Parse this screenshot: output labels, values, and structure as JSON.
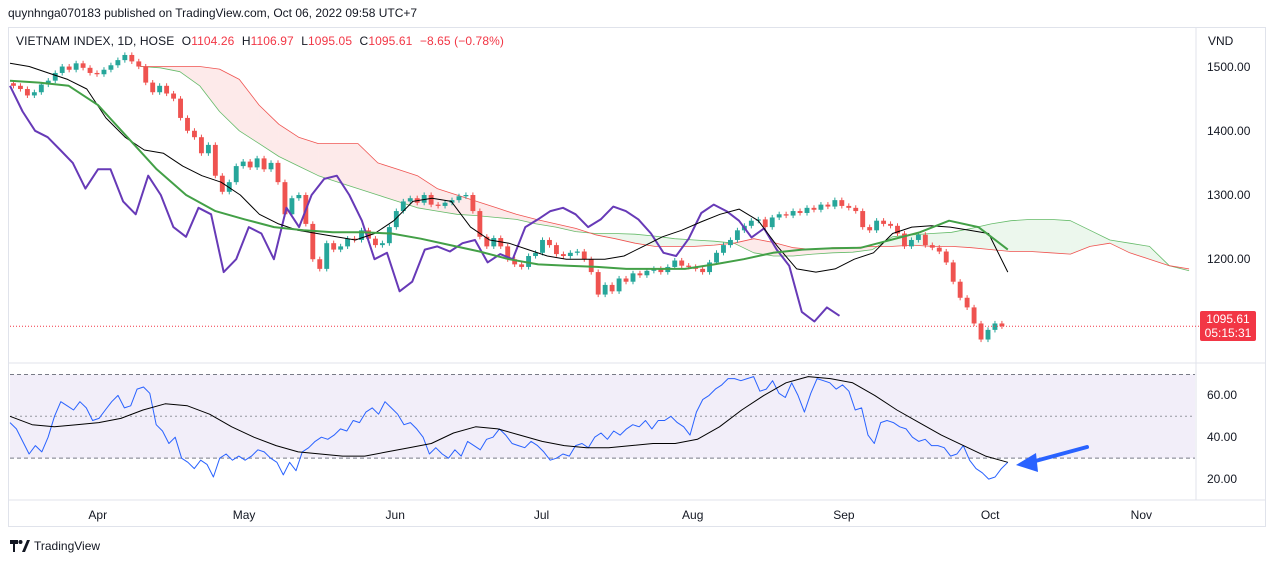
{
  "publisher_line": "quynhnga070183 published on TradingView.com, Oct 06, 2022 09:58 UTC+7",
  "brand": "TradingView",
  "legend": {
    "symbol": "VIETNAM INDEX, 1D, HOSE",
    "o_label": "O",
    "o_value": "1104.26",
    "h_label": "H",
    "h_value": "1106.97",
    "l_label": "L",
    "l_value": "1095.05",
    "c_label": "C",
    "c_value": "1095.61",
    "change": "−8.65 (−0.78%)"
  },
  "currency": "VND",
  "last_price": "1095.61",
  "countdown": "05:15:31",
  "colors": {
    "up": "#26a69a",
    "down": "#ef5350",
    "lagging": "#673ab7",
    "conversion": "#000000",
    "base_kijun": "#43a047",
    "span_a": "#66bb6a",
    "span_b": "#ef5350",
    "rsi": "#2962ff",
    "rsi_ma": "#000000",
    "arrow": "#2962ff"
  },
  "chart_data": [
    {
      "type": "candlestick",
      "title": "VIETNAM INDEX, 1D, HOSE",
      "ylabel": "VND",
      "ylim": [
        1040,
        1560
      ],
      "yticks": [
        "1500.00",
        "1400.00",
        "1300.00",
        "1200.00"
      ],
      "yticks_values": [
        1500,
        1400,
        1300,
        1200
      ],
      "xticks": [
        "Apr",
        "May",
        "Jun",
        "Jul",
        "Aug",
        "Sep",
        "Oct",
        "Nov"
      ],
      "xrange": [
        "2022-03-14",
        "2022-11-12"
      ],
      "candles_close": [
        1470,
        1465,
        1455,
        1460,
        1472,
        1478,
        1490,
        1500,
        1495,
        1505,
        1498,
        1490,
        1488,
        1495,
        1502,
        1510,
        1518,
        1508,
        1500,
        1475,
        1460,
        1470,
        1458,
        1450,
        1420,
        1400,
        1390,
        1365,
        1378,
        1330,
        1305,
        1320,
        1345,
        1352,
        1343,
        1357,
        1340,
        1350,
        1320,
        1270,
        1295,
        1300,
        1255,
        1200,
        1185,
        1225,
        1215,
        1220,
        1232,
        1230,
        1245,
        1232,
        1222,
        1225,
        1250,
        1275,
        1290,
        1295,
        1288,
        1300,
        1285,
        1283,
        1288,
        1292,
        1298,
        1300,
        1275,
        1235,
        1220,
        1233,
        1220,
        1200,
        1192,
        1188,
        1205,
        1210,
        1230,
        1222,
        1208,
        1205,
        1210,
        1212,
        1200,
        1180,
        1145,
        1160,
        1150,
        1170,
        1165,
        1178,
        1175,
        1182,
        1185,
        1180,
        1188,
        1198,
        1190,
        1188,
        1185,
        1180,
        1195,
        1210,
        1222,
        1230,
        1245,
        1252,
        1260,
        1262,
        1250,
        1265,
        1270,
        1268,
        1275,
        1272,
        1280,
        1277,
        1285,
        1282,
        1292,
        1283,
        1280,
        1275,
        1250,
        1245,
        1260,
        1255,
        1252,
        1240,
        1220,
        1230,
        1238,
        1222,
        1218,
        1212,
        1195,
        1165,
        1140,
        1125,
        1100,
        1075,
        1090,
        1100,
        1095.61
      ],
      "last_close": 1095.61,
      "series": [
        {
          "name": "Ichimoku conversion line",
          "values": [
            1505,
            1500,
            1490,
            1480,
            1465,
            1420,
            1390,
            1370,
            1365,
            1345,
            1330,
            1320,
            1300,
            1270,
            1255,
            1245,
            1240,
            1235,
            1230,
            1240,
            1260,
            1290,
            1295,
            1290,
            1250,
            1230,
            1225,
            1215,
            1205,
            1200,
            1200,
            1200,
            1205,
            1220,
            1235,
            1245,
            1258,
            1270,
            1278,
            1260,
            1220,
            1185,
            1180,
            1185,
            1200,
            1210,
            1240,
            1250,
            1252,
            1250,
            1245,
            1240,
            1180
          ]
        },
        {
          "name": "Ichimoku base line",
          "values": [
            1478,
            1475,
            1470,
            1440,
            1390,
            1340,
            1300,
            1275,
            1262,
            1250,
            1245,
            1242,
            1242,
            1240,
            1232,
            1222,
            1212,
            1200,
            1192,
            1190,
            1188,
            1185,
            1185,
            1185,
            1192,
            1200,
            1210,
            1215,
            1217,
            1218,
            1230,
            1242,
            1260,
            1250,
            1215
          ]
        },
        {
          "name": "Ichimoku lagging span",
          "values": [
            1470,
            1430,
            1400,
            1390,
            1370,
            1350,
            1310,
            1340,
            1340,
            1290,
            1270,
            1330,
            1300,
            1250,
            1235,
            1280,
            1270,
            1180,
            1200,
            1250,
            1240,
            1200,
            1280,
            1250,
            1300,
            1325,
            1330,
            1300,
            1260,
            1200,
            1210,
            1150,
            1165,
            1215,
            1220,
            1212,
            1225,
            1230,
            1195,
            1208,
            1200,
            1250,
            1262,
            1275,
            1280,
            1270,
            1250,
            1262,
            1282,
            1275,
            1262,
            1240,
            1210,
            1205,
            1232,
            1272,
            1285,
            1275,
            1260,
            1234,
            1248,
            1215,
            1190,
            1118,
            1103,
            1125,
            1112
          ]
        },
        {
          "name": "Ichimoku leading span A",
          "values": [
            1500,
            1498,
            1492,
            1470,
            1430,
            1400,
            1380,
            1360,
            1345,
            1330,
            1320,
            1310,
            1300,
            1290,
            1280,
            1275,
            1270,
            1268,
            1265,
            1262,
            1255,
            1250,
            1243,
            1240,
            1240,
            1239,
            1236,
            1232,
            1230,
            1228,
            1225,
            1210,
            1205,
            1205,
            1208,
            1210,
            1211,
            1215,
            1235,
            1238,
            1240,
            1242,
            1248,
            1255,
            1260,
            1262,
            1262,
            1260,
            1245,
            1230,
            1225,
            1220,
            1190,
            1182
          ]
        },
        {
          "name": "Ichimoku leading span B",
          "values": [
            1500,
            1500,
            1500,
            1500,
            1496,
            1480,
            1440,
            1410,
            1390,
            1380,
            1380,
            1380,
            1350,
            1340,
            1330,
            1310,
            1300,
            1290,
            1280,
            1270,
            1262,
            1255,
            1248,
            1238,
            1232,
            1225,
            1220,
            1220,
            1220,
            1222,
            1225,
            1232,
            1226,
            1218,
            1215,
            1218,
            1218,
            1220,
            1220,
            1222,
            1220,
            1220,
            1218,
            1215,
            1212,
            1212,
            1210,
            1208,
            1220,
            1225,
            1210,
            1200,
            1190,
            1185
          ]
        }
      ]
    },
    {
      "type": "line",
      "title": "RSI",
      "ylim": [
        10,
        75
      ],
      "yticks": [
        "60.00",
        "40.00",
        "20.00"
      ],
      "yticks_values": [
        60,
        40,
        20
      ],
      "band": [
        30,
        70
      ],
      "midline": 50,
      "series": [
        {
          "name": "RSI",
          "values": [
            47,
            44,
            38,
            32,
            36,
            33,
            40,
            50,
            57,
            55,
            53,
            57,
            54,
            48,
            49,
            53,
            57,
            60,
            54,
            55,
            63,
            64,
            61,
            46,
            43,
            37,
            40,
            30,
            28,
            25,
            29,
            27,
            21,
            30,
            32,
            29,
            31,
            29,
            31,
            34,
            33,
            30,
            28,
            22,
            28,
            24,
            33,
            35,
            38,
            40,
            39,
            41,
            44,
            43,
            48,
            47,
            52,
            54,
            51,
            57,
            54,
            51,
            46,
            47,
            44,
            40,
            32,
            35,
            32,
            30,
            34,
            31,
            38,
            36,
            34,
            39,
            40,
            44,
            41,
            37,
            36,
            35,
            38,
            36,
            33,
            29,
            30,
            32,
            31,
            36,
            37,
            35,
            40,
            42,
            39,
            43,
            41,
            44,
            46,
            45,
            48,
            44,
            48,
            48,
            50,
            47,
            45,
            41,
            52,
            58,
            60,
            63,
            65,
            68,
            68,
            67,
            68,
            69,
            62,
            63,
            67,
            61,
            59,
            66,
            60,
            52,
            61,
            68,
            67,
            66,
            63,
            65,
            62,
            53,
            54,
            41,
            37,
            47,
            48,
            47,
            45,
            44,
            40,
            38,
            39,
            36,
            36,
            35,
            31,
            32,
            36,
            29,
            25,
            23,
            20,
            21,
            25,
            28
          ]
        },
        {
          "name": "RSI-based MA",
          "values": [
            50,
            46,
            45,
            46,
            47,
            49,
            53,
            56,
            55,
            51,
            45,
            40,
            36,
            33,
            32,
            31,
            31,
            33,
            35,
            37,
            42,
            45,
            44,
            41,
            38,
            36,
            35,
            35,
            36,
            37,
            37,
            39,
            45,
            53,
            60,
            66,
            69,
            68,
            66,
            60,
            53,
            47,
            41,
            36,
            31,
            28
          ]
        }
      ],
      "annotation": "arrow pointing at RSI-based MA crossing near 30"
    }
  ]
}
